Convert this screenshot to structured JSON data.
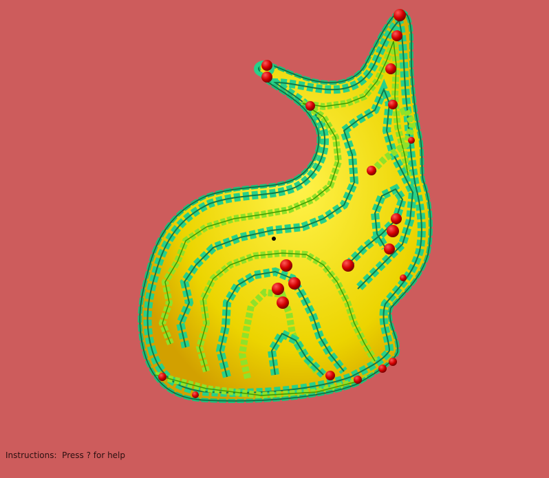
{
  "viewport": {
    "background_color": "#cd5c5c",
    "model": "bunny-mesh",
    "surface_color": "#f2e000",
    "stripe_outer_color": "#28d98a",
    "stripe_inner_color": "#8fe22a",
    "marker_color": "#d40000",
    "cursor_color": "#000000"
  },
  "status": {
    "label": "Instructions:",
    "text": "Press ? for help"
  }
}
